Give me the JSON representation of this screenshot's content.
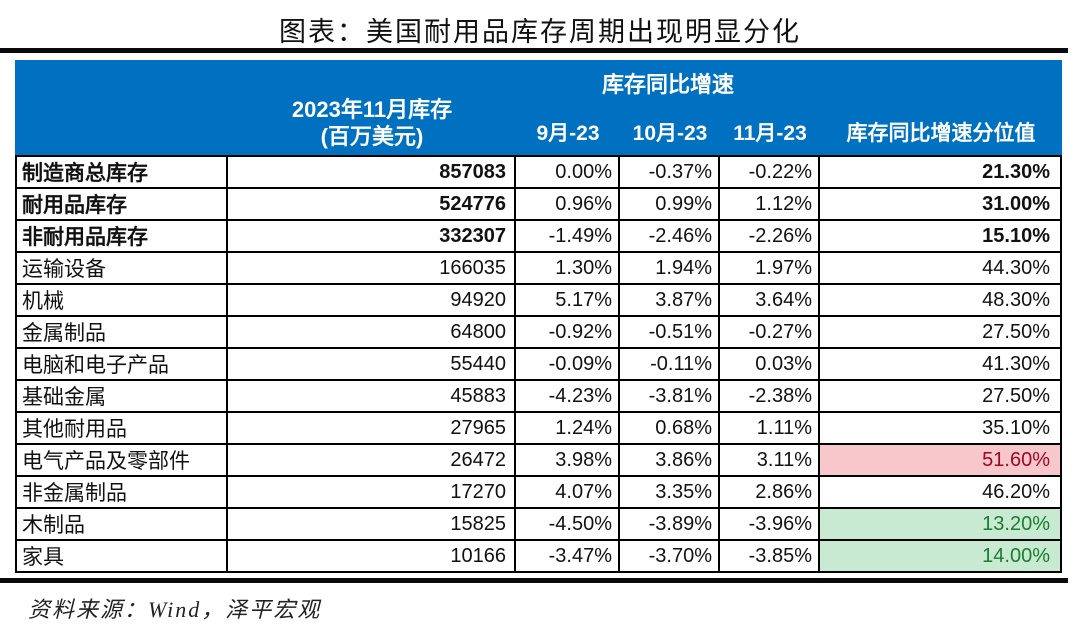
{
  "title": "图表：美国耐用品库存周期出现明显分化",
  "source_note": "资料来源：Wind，泽平宏观",
  "colors": {
    "header_bg": "#0070C0",
    "header_text": "#FFFFFF",
    "border": "#000000",
    "bad_cell_bg": "#F7C7CB",
    "bad_cell_text": "#9C0A22",
    "good_cell_bg": "#C9EAD2",
    "good_cell_text": "#1D7C2D"
  },
  "chart_data": {
    "type": "table",
    "title": "图表：美国耐用品库存周期出现明显分化",
    "header": {
      "inventory_label": "2023年11月库存",
      "inventory_unit": "(百万美元)",
      "yoy_group_label": "库存同比增速",
      "month_labels": [
        "9月-23",
        "10月-23",
        "11月-23"
      ],
      "percentile_label": "库存同比增速分位值"
    },
    "rows": [
      {
        "label": "制造商总库存",
        "inventory": "857083",
        "yoy": [
          "0.00%",
          "-0.37%",
          "-0.22%"
        ],
        "percentile": "21.30%",
        "bold": true,
        "highlight": null
      },
      {
        "label": "耐用品库存",
        "inventory": "524776",
        "yoy": [
          "0.96%",
          "0.99%",
          "1.12%"
        ],
        "percentile": "31.00%",
        "bold": true,
        "highlight": null
      },
      {
        "label": "非耐用品库存",
        "inventory": "332307",
        "yoy": [
          "-1.49%",
          "-2.46%",
          "-2.26%"
        ],
        "percentile": "15.10%",
        "bold": true,
        "highlight": null
      },
      {
        "label": "运输设备",
        "inventory": "166035",
        "yoy": [
          "1.30%",
          "1.94%",
          "1.97%"
        ],
        "percentile": "44.30%",
        "bold": false,
        "highlight": null
      },
      {
        "label": "机械",
        "inventory": "94920",
        "yoy": [
          "5.17%",
          "3.87%",
          "3.64%"
        ],
        "percentile": "48.30%",
        "bold": false,
        "highlight": null
      },
      {
        "label": "金属制品",
        "inventory": "64800",
        "yoy": [
          "-0.92%",
          "-0.51%",
          "-0.27%"
        ],
        "percentile": "27.50%",
        "bold": false,
        "highlight": null
      },
      {
        "label": "电脑和电子产品",
        "inventory": "55440",
        "yoy": [
          "-0.09%",
          "-0.11%",
          "0.03%"
        ],
        "percentile": "41.30%",
        "bold": false,
        "highlight": null
      },
      {
        "label": "基础金属",
        "inventory": "45883",
        "yoy": [
          "-4.23%",
          "-3.81%",
          "-2.38%"
        ],
        "percentile": "27.50%",
        "bold": false,
        "highlight": null
      },
      {
        "label": "其他耐用品",
        "inventory": "27965",
        "yoy": [
          "1.24%",
          "0.68%",
          "1.11%"
        ],
        "percentile": "35.10%",
        "bold": false,
        "highlight": null
      },
      {
        "label": "电气产品及零部件",
        "inventory": "26472",
        "yoy": [
          "3.98%",
          "3.86%",
          "3.11%"
        ],
        "percentile": "51.60%",
        "bold": false,
        "highlight": "bad"
      },
      {
        "label": "非金属制品",
        "inventory": "17270",
        "yoy": [
          "4.07%",
          "3.35%",
          "2.86%"
        ],
        "percentile": "46.20%",
        "bold": false,
        "highlight": null
      },
      {
        "label": "木制品",
        "inventory": "15825",
        "yoy": [
          "-4.50%",
          "-3.89%",
          "-3.96%"
        ],
        "percentile": "13.20%",
        "bold": false,
        "highlight": "good"
      },
      {
        "label": "家具",
        "inventory": "10166",
        "yoy": [
          "-3.47%",
          "-3.70%",
          "-3.85%"
        ],
        "percentile": "14.00%",
        "bold": false,
        "highlight": "good"
      }
    ]
  }
}
